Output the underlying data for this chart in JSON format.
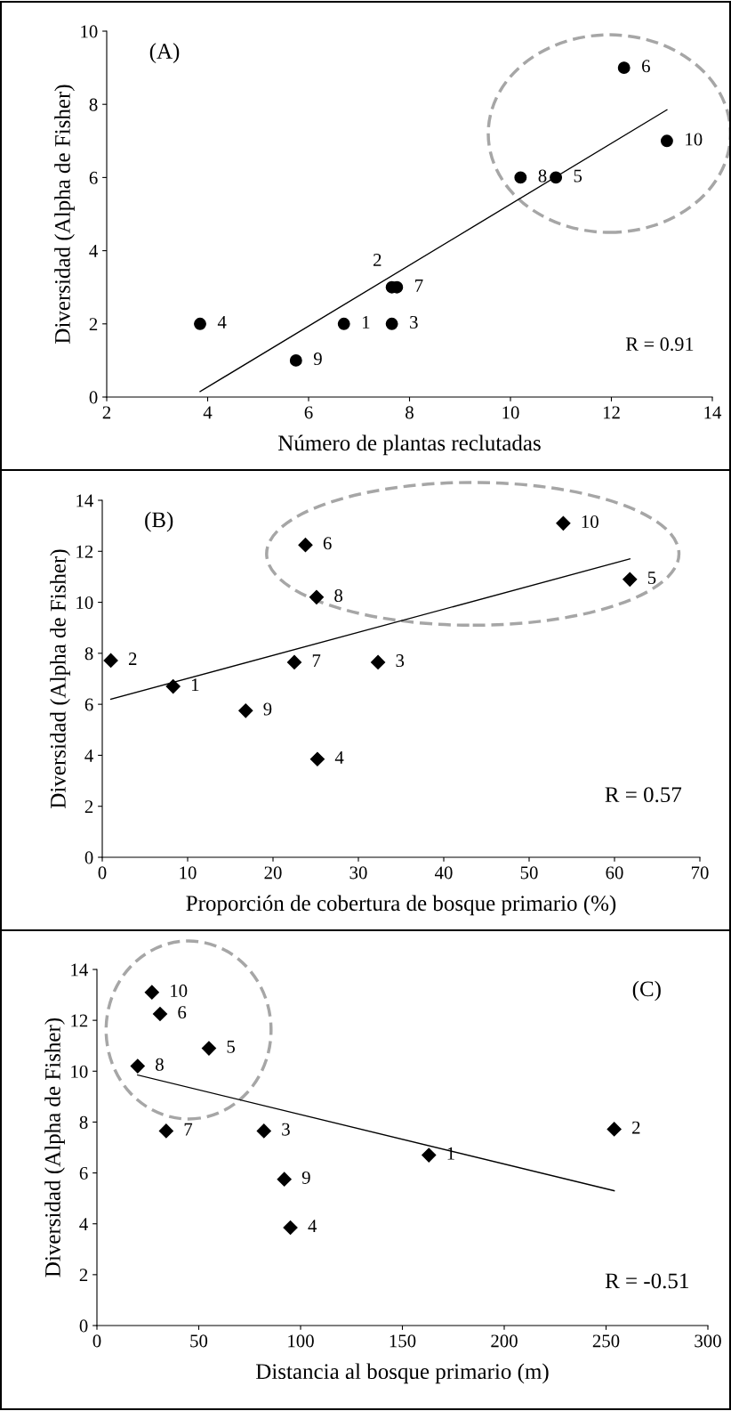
{
  "chart_data": [
    {
      "type": "scatter",
      "xlabel": "Número de plantas reclutadas",
      "ylabel": "Diversidad (Alpha de Fisher)",
      "xlim": [
        2,
        14
      ],
      "ylim": [
        0,
        10
      ],
      "xticks": [
        2,
        4,
        6,
        8,
        10,
        12,
        14
      ],
      "yticks": [
        0,
        2,
        4,
        6,
        8,
        10
      ],
      "grid": false,
      "legend": false,
      "series": [
        {
          "marker": "circle",
          "color": "#000000",
          "x": [
            6.7,
            7.65,
            7.65,
            3.85,
            10.9,
            12.25,
            7.75,
            10.2,
            5.75,
            13.1
          ],
          "values": [
            2,
            3,
            2,
            2,
            6,
            9,
            3,
            6,
            1,
            7
          ]
        },
        {
          "type": "line",
          "color": "#000000",
          "x": [
            3.85,
            13.1
          ],
          "values": [
            0.15,
            7.85
          ]
        }
      ],
      "annotations": [
        "(A)",
        "R = 0.91",
        {
          "text": "1",
          "x": 6.7,
          "y": 2
        },
        {
          "text": "2",
          "x": 7.65,
          "y": 3
        },
        {
          "text": "3",
          "x": 7.65,
          "y": 2
        },
        {
          "text": "4",
          "x": 3.85,
          "y": 2
        },
        {
          "text": "5",
          "x": 10.9,
          "y": 6
        },
        {
          "text": "6",
          "x": 12.25,
          "y": 9
        },
        {
          "text": "7",
          "x": 7.75,
          "y": 3
        },
        {
          "text": "8",
          "x": 10.2,
          "y": 6
        },
        {
          "text": "9",
          "x": 5.75,
          "y": 1
        },
        {
          "text": "10",
          "x": 13.1,
          "y": 7
        }
      ]
    },
    {
      "type": "scatter",
      "xlabel": "Proporción de cobertura de bosque primario (%)",
      "ylabel": "Diversidad (Alpha de Fisher)",
      "xlim": [
        0,
        70
      ],
      "ylim": [
        0,
        14
      ],
      "xticks": [
        0,
        10,
        20,
        30,
        40,
        50,
        60,
        70
      ],
      "yticks": [
        0,
        2,
        4,
        6,
        8,
        10,
        12,
        14
      ],
      "grid": false,
      "legend": false,
      "series": [
        {
          "marker": "diamond",
          "color": "#000000",
          "x": [
            8.3,
            1,
            32.3,
            25.2,
            61.8,
            23.8,
            22.5,
            25.1,
            16.8,
            54
          ],
          "values": [
            6.7,
            7.72,
            7.65,
            3.85,
            10.9,
            12.25,
            7.65,
            10.2,
            5.75,
            13.1
          ]
        },
        {
          "type": "line",
          "color": "#000000",
          "x": [
            1,
            61.8
          ],
          "values": [
            6.2,
            11.7
          ]
        }
      ],
      "annotations": [
        "(B)",
        "R = 0.57",
        {
          "text": "1",
          "x": 8.3,
          "y": 6.7
        },
        {
          "text": "2",
          "x": 1,
          "y": 7.72
        },
        {
          "text": "3",
          "x": 32.3,
          "y": 7.65
        },
        {
          "text": "4",
          "x": 25.2,
          "y": 3.85
        },
        {
          "text": "5",
          "x": 61.8,
          "y": 10.9
        },
        {
          "text": "6",
          "x": 23.8,
          "y": 12.25
        },
        {
          "text": "7",
          "x": 22.5,
          "y": 7.65
        },
        {
          "text": "8",
          "x": 25.1,
          "y": 10.2
        },
        {
          "text": "9",
          "x": 16.8,
          "y": 5.75
        },
        {
          "text": "10",
          "x": 54,
          "y": 13.1
        }
      ]
    },
    {
      "type": "scatter",
      "xlabel": "Distancia al bosque primario (m)",
      "ylabel": "Diversidad (Alpha de Fisher)",
      "xlim": [
        0,
        300
      ],
      "ylim": [
        0,
        14
      ],
      "xticks": [
        0,
        50,
        100,
        150,
        200,
        250,
        300
      ],
      "yticks": [
        0,
        2,
        4,
        6,
        8,
        10,
        12,
        14
      ],
      "grid": false,
      "legend": false,
      "series": [
        {
          "marker": "diamond",
          "color": "#000000",
          "x": [
            163,
            254,
            82,
            95,
            55,
            31,
            34,
            20,
            92,
            27
          ],
          "values": [
            6.7,
            7.72,
            7.65,
            3.85,
            10.9,
            12.25,
            7.65,
            10.2,
            5.75,
            13.1
          ]
        },
        {
          "type": "line",
          "color": "#000000",
          "x": [
            20,
            254
          ],
          "values": [
            9.85,
            5.3
          ]
        }
      ],
      "annotations": [
        "(C)",
        "R = -0.51",
        {
          "text": "1",
          "x": 163,
          "y": 6.7
        },
        {
          "text": "2",
          "x": 254,
          "y": 7.72
        },
        {
          "text": "3",
          "x": 82,
          "y": 7.65
        },
        {
          "text": "4",
          "x": 95,
          "y": 3.85
        },
        {
          "text": "5",
          "x": 55,
          "y": 10.9
        },
        {
          "text": "6",
          "x": 31,
          "y": 12.25
        },
        {
          "text": "7",
          "x": 34,
          "y": 7.65
        },
        {
          "text": "8",
          "x": 20,
          "y": 10.2
        },
        {
          "text": "9",
          "x": 92,
          "y": 5.75
        },
        {
          "text": "10",
          "x": 27,
          "y": 13.1
        }
      ]
    }
  ]
}
